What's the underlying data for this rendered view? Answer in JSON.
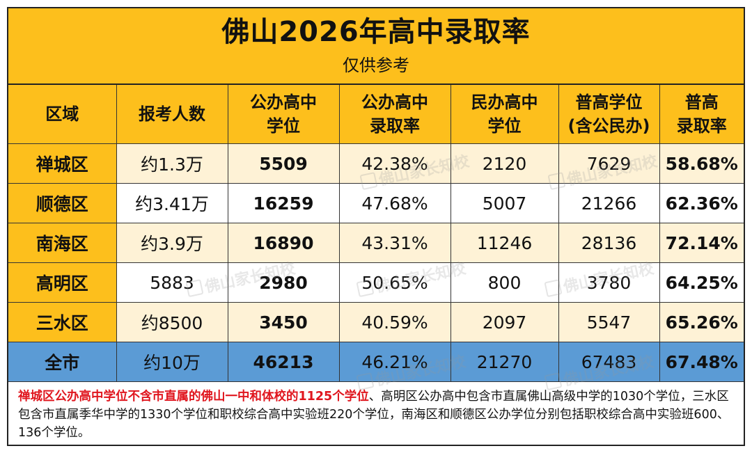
{
  "header": {
    "title": "佛山2026年高中录取率",
    "subtitle": "仅供参考"
  },
  "columns": [
    [
      "区域"
    ],
    [
      "报考人数"
    ],
    [
      "公办高中",
      "学位"
    ],
    [
      "公办高中",
      "录取率"
    ],
    [
      "民办高中",
      "学位"
    ],
    [
      "普高学位",
      "(含公民办)"
    ],
    [
      "普高",
      "录取率"
    ]
  ],
  "rows": [
    {
      "region": "禅城区",
      "applicants": "约1.3万",
      "public_seats": "5509",
      "public_rate": "42.38%",
      "private_seats": "2120",
      "total_seats": "7629",
      "total_rate": "58.68%"
    },
    {
      "region": "顺德区",
      "applicants": "约3.41万",
      "public_seats": "16259",
      "public_rate": "47.68%",
      "private_seats": "5007",
      "total_seats": "21266",
      "total_rate": "62.36%"
    },
    {
      "region": "南海区",
      "applicants": "约3.9万",
      "public_seats": "16890",
      "public_rate": "43.31%",
      "private_seats": "11246",
      "total_seats": "28136",
      "total_rate": "72.14%"
    },
    {
      "region": "高明区",
      "applicants": "5883",
      "public_seats": "2980",
      "public_rate": "50.65%",
      "private_seats": "800",
      "total_seats": "3780",
      "total_rate": "64.25%"
    },
    {
      "region": "三水区",
      "applicants": "约8500",
      "public_seats": "3450",
      "public_rate": "40.59%",
      "private_seats": "2097",
      "total_seats": "5547",
      "total_rate": "65.26%"
    },
    {
      "region": "全市",
      "applicants": "约10万",
      "public_seats": "46213",
      "public_rate": "46.21%",
      "private_seats": "21270",
      "total_seats": "67483",
      "total_rate": "67.48%"
    }
  ],
  "footnote": {
    "highlight": "禅城区公办高中学位不含市直属的佛山一中和体校的1125个学位",
    "rest": "、高明区公办高中包含市直属佛山高级中学的1030个学位，三水区包含市直属季华中学的1330个学位和职校综合高中实验班220个学位，南海区和顺德区公办学位分别包括职校综合高中实验班600、136个学位。"
  },
  "watermark": {
    "text": "佛山家长知校",
    "icon": "badge-icon"
  },
  "colors": {
    "header_yellow": "#fdbf1c",
    "row_cream": "#fef2d6",
    "total_blue": "#5b9bd5",
    "highlight_red": "#e0161e"
  }
}
